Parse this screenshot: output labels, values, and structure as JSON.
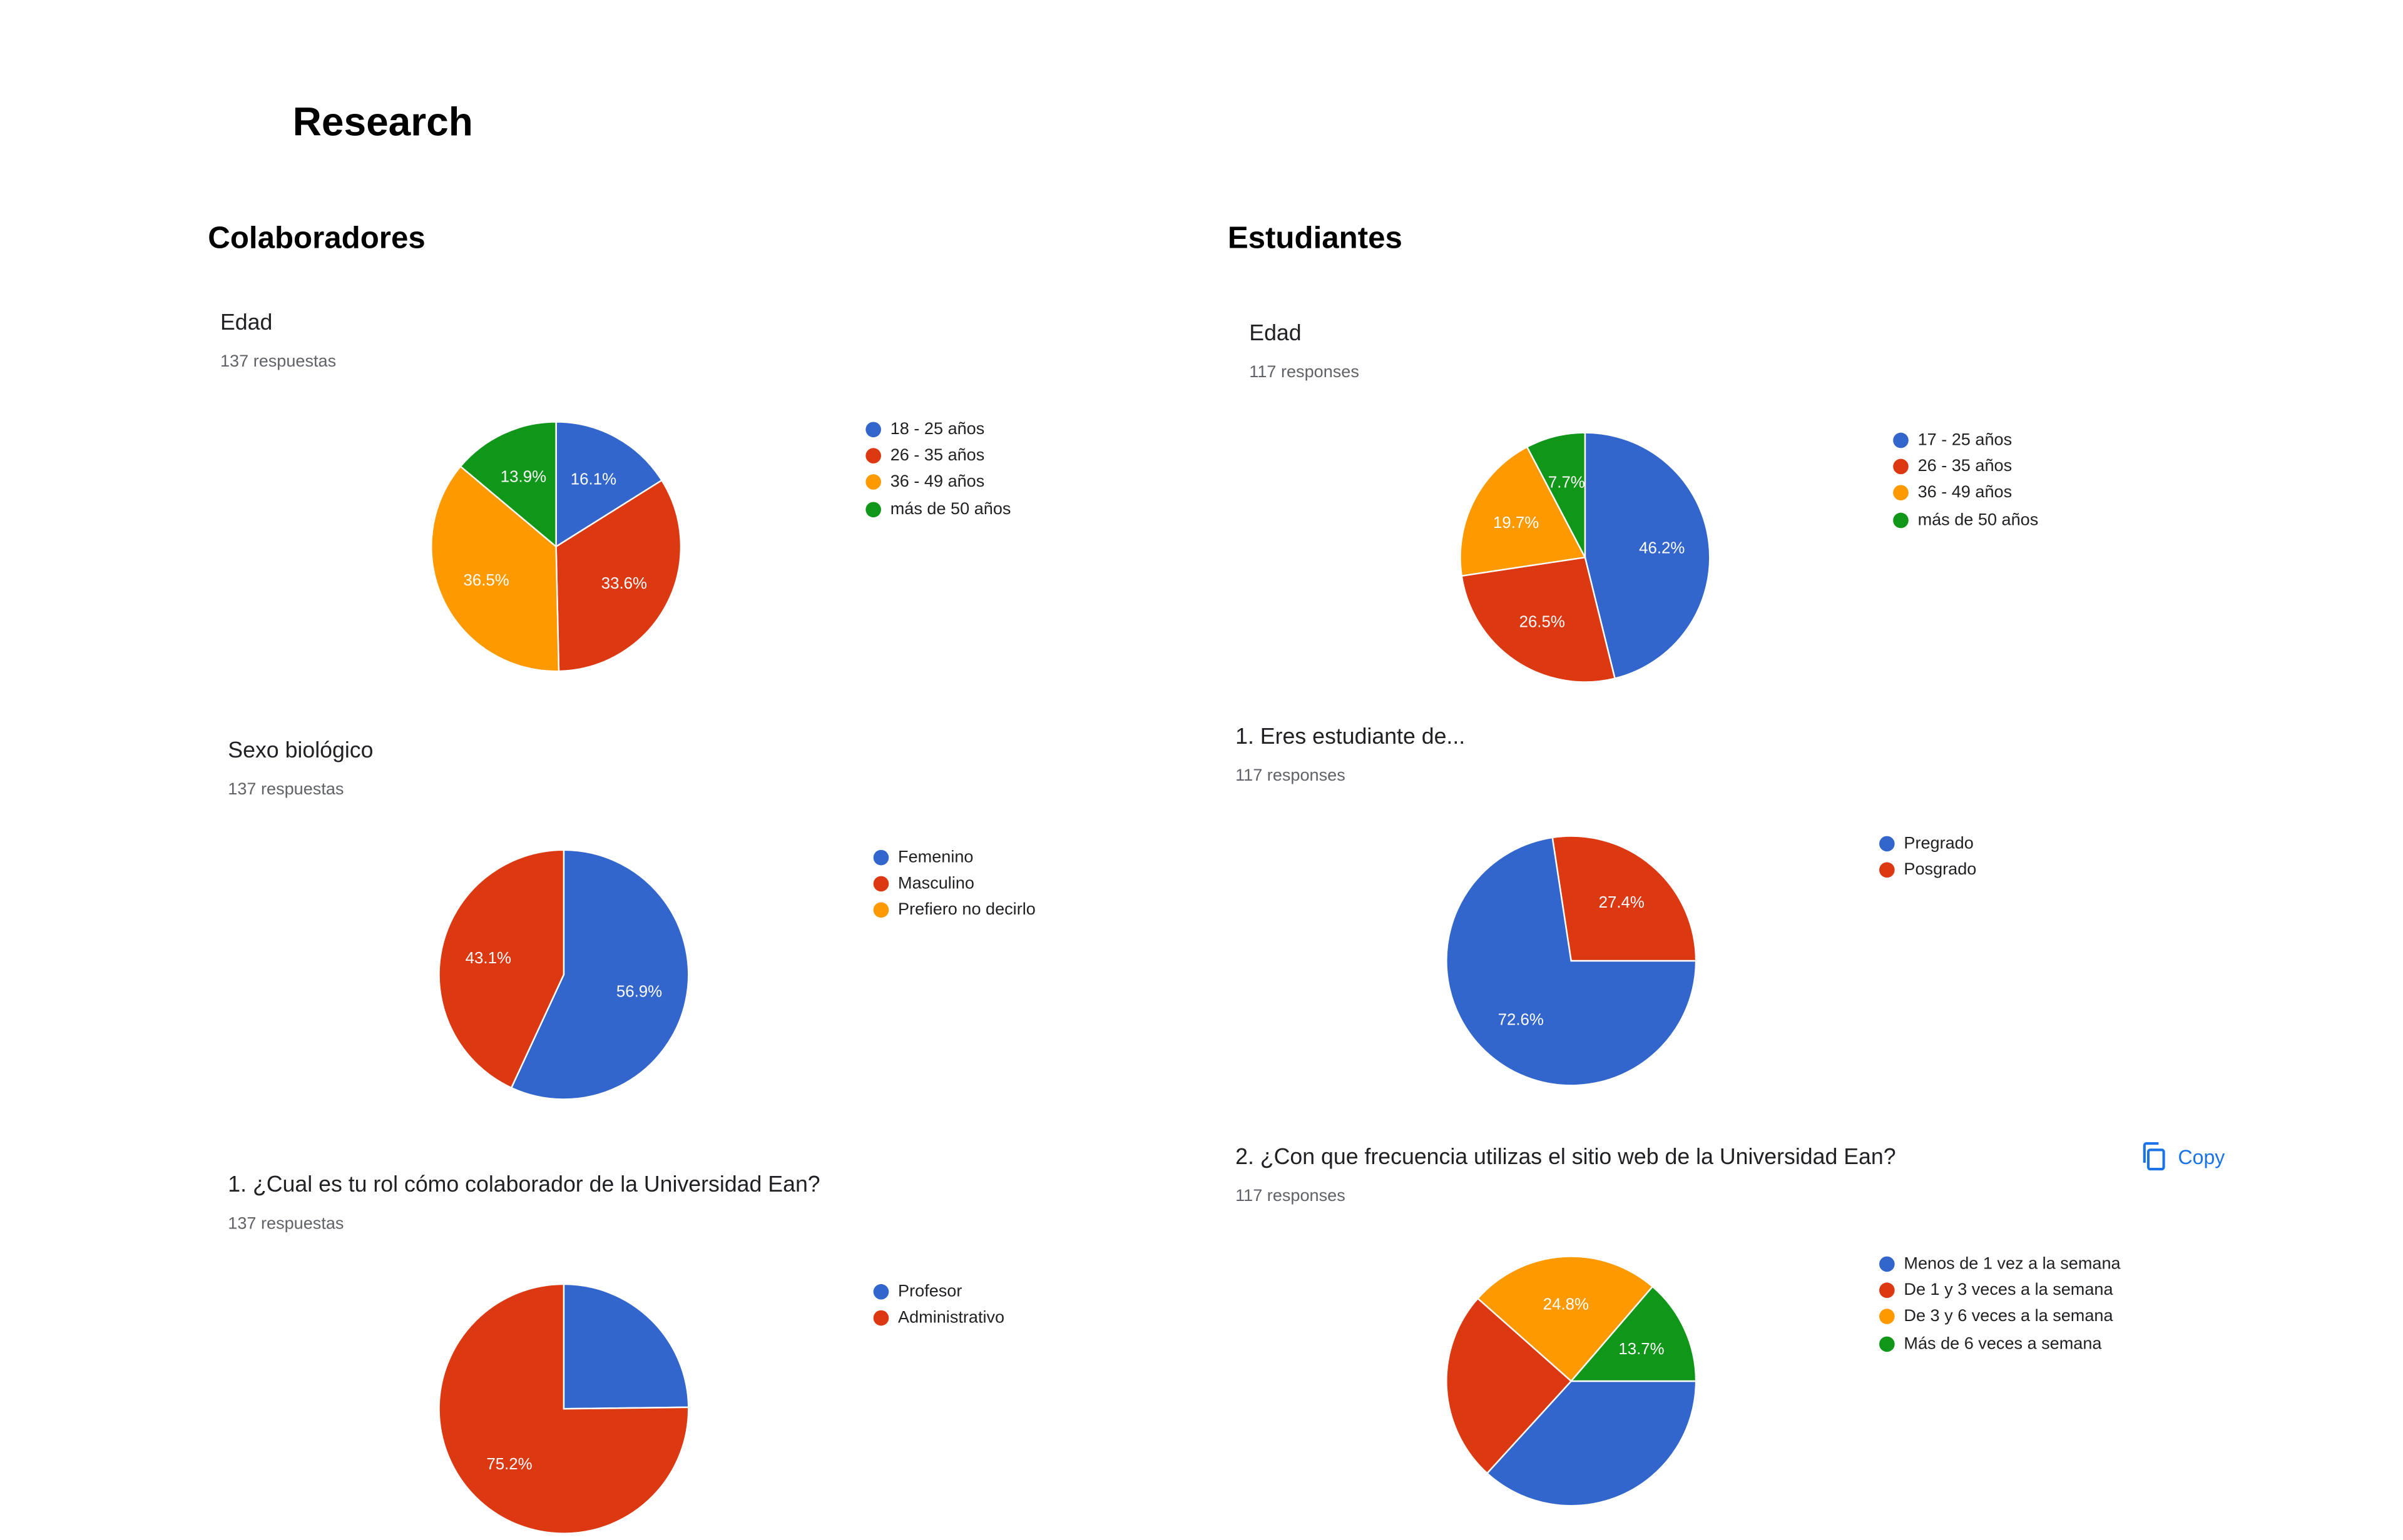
{
  "page": {
    "title": "Research"
  },
  "colors": {
    "blue": "#3366cc",
    "red": "#dc3912",
    "orange": "#ff9900",
    "green": "#109618"
  },
  "sections": {
    "left": {
      "title": "Colaboradores"
    },
    "right": {
      "title": "Estudiantes"
    }
  },
  "copy_label": "Copy",
  "chart_data": [
    {
      "id": "col-edad",
      "type": "pie",
      "title": "Edad",
      "subtitle": "137 respuestas",
      "labels": [
        "18 - 25 años",
        "26 - 35 años",
        "36 - 49 años",
        "más de 50 años"
      ],
      "values": [
        16.1,
        33.6,
        36.5,
        13.9
      ],
      "value_labels": [
        "16.1%",
        "33.6%",
        "36.5%",
        "13.9%"
      ],
      "colors": [
        "#3366cc",
        "#dc3912",
        "#ff9900",
        "#109618"
      ],
      "legend_position": "right"
    },
    {
      "id": "col-sexo",
      "type": "pie",
      "title": "Sexo biológico",
      "subtitle": "137 respuestas",
      "labels": [
        "Femenino",
        "Masculino",
        "Prefiero no decirlo"
      ],
      "values": [
        56.9,
        43.1,
        0
      ],
      "value_labels": [
        "56.9%",
        "43.1%",
        ""
      ],
      "colors": [
        "#3366cc",
        "#dc3912",
        "#ff9900"
      ],
      "legend_position": "right"
    },
    {
      "id": "col-rol",
      "type": "pie",
      "title": "1. ¿Cual es tu rol cómo colaborador de la Universidad Ean?",
      "subtitle": "137 respuestas",
      "labels": [
        "Profesor",
        "Administrativo"
      ],
      "values": [
        24.8,
        75.2
      ],
      "value_labels": [
        "",
        "75.2%"
      ],
      "colors": [
        "#3366cc",
        "#dc3912"
      ],
      "legend_position": "right"
    },
    {
      "id": "est-edad",
      "type": "pie",
      "title": "Edad",
      "subtitle": "117 responses",
      "labels": [
        "17 - 25 años",
        "26 - 35 años",
        "36 - 49 años",
        "más de 50 años"
      ],
      "values": [
        46.2,
        26.5,
        19.7,
        7.7
      ],
      "value_labels": [
        "46.2%",
        "26.5%",
        "19.7%",
        "7.7%"
      ],
      "colors": [
        "#3366cc",
        "#dc3912",
        "#ff9900",
        "#109618"
      ],
      "legend_position": "right"
    },
    {
      "id": "est-tipo",
      "type": "pie",
      "title": "1. Eres estudiante de...",
      "subtitle": "117 responses",
      "labels": [
        "Pregrado",
        "Posgrado"
      ],
      "values": [
        72.6,
        27.4
      ],
      "value_labels": [
        "72.6%",
        "27.4%"
      ],
      "colors": [
        "#3366cc",
        "#dc3912"
      ],
      "legend_position": "right"
    },
    {
      "id": "est-frecuencia",
      "type": "pie",
      "title": "2. ¿Con que frecuencia utilizas el sitio web de la Universidad Ean?",
      "subtitle": "117 responses",
      "labels": [
        "Menos de 1 vez a la semana",
        "De 1 y 3 veces a la semana",
        "De 3 y 6 veces a la semana",
        "Más de 6 veces a semana"
      ],
      "values": [
        36.8,
        24.8,
        24.8,
        13.7
      ],
      "value_labels": [
        "",
        "",
        "24.8%",
        "13.7%"
      ],
      "colors": [
        "#3366cc",
        "#dc3912",
        "#ff9900",
        "#109618"
      ],
      "legend_position": "right"
    }
  ]
}
